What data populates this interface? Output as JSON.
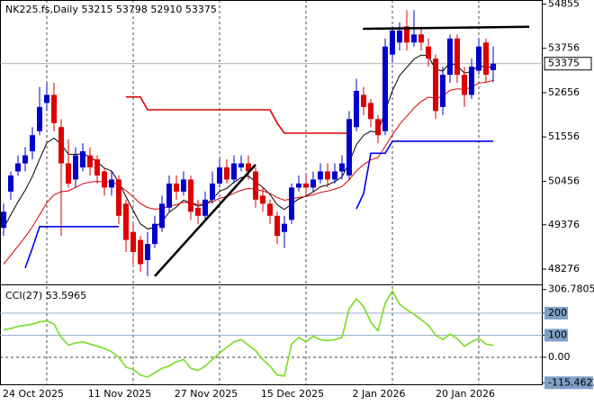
{
  "chart_data": [
    {
      "type": "candlestick",
      "title": "NK225.fs,Daily",
      "categories": [
        null,
        null,
        null,
        null,
        null,
        null,
        "24 Oct 2025",
        null,
        null,
        null,
        null,
        null,
        null,
        null,
        null,
        null,
        null,
        null,
        "11 Nov 2025",
        null,
        null,
        null,
        null,
        null,
        null,
        null,
        null,
        null,
        null,
        null,
        "27 Nov 2025",
        null,
        null,
        null,
        null,
        null,
        null,
        null,
        null,
        null,
        null,
        null,
        "15 Dec 2025",
        null,
        null,
        null,
        null,
        null,
        null,
        null,
        null,
        null,
        null,
        null,
        "2 Jan 2026",
        null,
        null,
        null,
        null,
        null,
        null,
        null,
        null,
        null,
        null,
        null,
        "20 Jan 2026",
        null,
        null
      ],
      "open": [
        49300,
        50200,
        50700,
        50900,
        51200,
        51700,
        52400,
        52600,
        51800,
        50900,
        50500,
        50800,
        51100,
        51000,
        50700,
        50300,
        50500,
        49900,
        49200,
        49000,
        48500,
        48900,
        49300,
        49800,
        50400,
        50200,
        50500,
        49800,
        49600,
        50000,
        50400,
        50800,
        50500,
        50800,
        50900,
        50700,
        50100,
        49900,
        49600,
        49200,
        49500,
        50300,
        50400,
        50300,
        50500,
        50700,
        50500,
        50700,
        50600,
        51800,
        52600,
        52400,
        52000,
        51700,
        53600,
        53900,
        54300,
        53900,
        54100,
        53800,
        53500,
        52300,
        53100,
        54000,
        53100,
        52600,
        53200,
        53900,
        53215
      ],
      "high": [
        49900,
        50700,
        51100,
        51300,
        51800,
        52800,
        52900,
        52900,
        52000,
        51500,
        51300,
        51400,
        51300,
        51100,
        50800,
        50700,
        50600,
        50000,
        49400,
        49100,
        49200,
        49600,
        50100,
        50600,
        50600,
        50700,
        50600,
        50000,
        50200,
        50700,
        51000,
        51000,
        51100,
        51100,
        51100,
        50800,
        50300,
        50000,
        49700,
        49600,
        50400,
        50600,
        50600,
        50700,
        50900,
        50900,
        50900,
        51100,
        52200,
        53000,
        52800,
        52500,
        52100,
        54000,
        54300,
        54400,
        54700,
        54700,
        54300,
        54000,
        53600,
        53300,
        54100,
        54100,
        53300,
        53500,
        54000,
        54000,
        53798
      ],
      "low": [
        49100,
        50000,
        50600,
        50700,
        51000,
        51600,
        52200,
        51700,
        49100,
        50300,
        50300,
        50700,
        50600,
        50400,
        50100,
        50100,
        49400,
        48700,
        48400,
        48200,
        48100,
        48800,
        49200,
        49700,
        50000,
        50100,
        49500,
        49400,
        49500,
        49900,
        50300,
        50400,
        50400,
        50700,
        50500,
        49800,
        49700,
        49400,
        48900,
        48800,
        49400,
        50200,
        50100,
        50200,
        50400,
        50300,
        50400,
        50500,
        50500,
        51700,
        52100,
        51800,
        51400,
        51600,
        53400,
        53700,
        53700,
        53800,
        53700,
        53300,
        52000,
        52100,
        52900,
        52900,
        52300,
        52500,
        53100,
        52900,
        52910
      ],
      "close": [
        49700,
        50600,
        50900,
        51100,
        51600,
        52300,
        52600,
        51900,
        50900,
        50400,
        51100,
        51200,
        50800,
        50600,
        50300,
        50500,
        49600,
        49000,
        48700,
        48400,
        48900,
        49400,
        49900,
        50400,
        50200,
        50500,
        49700,
        49600,
        50000,
        50400,
        50800,
        50500,
        50900,
        50900,
        50700,
        50000,
        49900,
        49600,
        49100,
        49400,
        50300,
        50400,
        50300,
        50500,
        50700,
        50500,
        50700,
        50900,
        52000,
        52700,
        52300,
        52000,
        51600,
        53800,
        54200,
        54200,
        53900,
        54100,
        53900,
        53500,
        52200,
        53100,
        54000,
        53100,
        52600,
        53300,
        53800,
        53100,
        53375
      ],
      "up_color": "#0000cc",
      "down_color": "#dd0000",
      "lines": [
        {
          "color": "#000000",
          "values": [
            49300,
            49625,
            49944,
            50233,
            50575,
            51006,
            51405,
            51529,
            51372,
            51129,
            51122,
            51142,
            51056,
            50942,
            50782,
            50711,
            50433,
            50075,
            49731,
            49398,
            49274,
            49305,
            49454,
            49691,
            49818,
            49989,
            49917,
            49838,
            49878,
            50009,
            50207,
            50280,
            50435,
            50551,
            50588,
            50441,
            50306,
            50130,
            49873,
            49754,
            49891,
            50018,
            50089,
            50192,
            50319,
            50364,
            50448,
            50561,
            50921,
            51366,
            51599,
            51699,
            51674,
            52206,
            52704,
            53078,
            53284,
            53488,
            53591,
            53568,
            53226,
            53195,
            53396,
            53322,
            53142,
            53181,
            53336,
            53277,
            53302
          ]
        },
        {
          "color": "#dd0000",
          "values": [
            48400,
            48620,
            48848,
            49073,
            49326,
            49623,
            49921,
            50119,
            50197,
            50217,
            50305,
            50395,
            50436,
            50452,
            50437,
            50443,
            50359,
            50223,
            50071,
            49904,
            49804,
            49763,
            49777,
            49839,
            49875,
            49938,
            49914,
            49883,
            49895,
            49945,
            50031,
            50078,
            50160,
            50234,
            50281,
            50253,
            50218,
            50156,
            50050,
            49985,
            50017,
            50055,
            50080,
            50122,
            50180,
            50212,
            50261,
            50325,
            50493,
            50714,
            50873,
            50986,
            51047,
            51322,
            51610,
            51869,
            52072,
            52275,
            52438,
            52544,
            52510,
            52569,
            52712,
            52751,
            52736,
            52792,
            52893,
            52914,
            52960
          ]
        },
        {
          "color": "#dd0000",
          "values": [
            null,
            null,
            null,
            null,
            null,
            null,
            null,
            null,
            null,
            null,
            null,
            null,
            null,
            null,
            null,
            null,
            null,
            52550,
            52550,
            52550,
            52230,
            52230,
            52230,
            52230,
            52230,
            52230,
            52230,
            52230,
            52230,
            52230,
            52230,
            52230,
            52230,
            52230,
            52230,
            52230,
            52230,
            52230,
            51900,
            51650,
            51650,
            51650,
            51650,
            51650,
            51650,
            51650,
            51650,
            51650,
            51650,
            null,
            null,
            null,
            null,
            null,
            null,
            null,
            null,
            null,
            null,
            null,
            null,
            null,
            null,
            null,
            null,
            null,
            null,
            null,
            null
          ]
        },
        {
          "color": "#0000ee",
          "values": [
            null,
            null,
            null,
            48300,
            48800,
            49330,
            49330,
            49330,
            49330,
            49330,
            49330,
            49330,
            49330,
            49330,
            49330,
            49330,
            49330,
            null,
            null,
            null,
            null,
            null,
            null,
            null,
            null,
            null,
            null,
            null,
            null,
            null,
            null,
            null,
            null,
            null,
            null,
            null,
            null,
            null,
            null,
            null,
            null,
            null,
            null,
            null,
            null,
            null,
            null,
            null,
            null,
            49770,
            50150,
            51150,
            51150,
            51150,
            51450,
            51450,
            51450,
            51450,
            51450,
            51450,
            51450,
            51450,
            51450,
            51450,
            51450,
            51450,
            51450,
            51450,
            51450
          ]
        }
      ],
      "trendlines": [
        {
          "color": "#000000",
          "x": [
            21,
            35
          ],
          "y": [
            48100,
            50870
          ]
        },
        {
          "color": "#000000",
          "x": [
            49.9,
            73
          ],
          "y": [
            54240,
            54290
          ]
        }
      ],
      "ylim": [
        47919,
        54955
      ],
      "yticks": [
        48276,
        49376,
        50456,
        51556,
        52656,
        53756,
        54855
      ],
      "grid": true
    },
    {
      "type": "line",
      "title": "CCI(27)",
      "color": "#77dd22",
      "values": [
        125,
        130,
        140,
        145,
        150,
        160,
        165,
        150,
        90,
        55,
        65,
        70,
        60,
        50,
        40,
        25,
        0,
        -45,
        -55,
        -80,
        -90,
        -70,
        -50,
        -40,
        -20,
        -10,
        -50,
        -60,
        -40,
        -10,
        20,
        45,
        70,
        80,
        55,
        30,
        -10,
        -40,
        -80,
        -85,
        60,
        90,
        70,
        95,
        80,
        75,
        80,
        90,
        220,
        265,
        230,
        160,
        120,
        245,
        300,
        240,
        215,
        195,
        170,
        145,
        100,
        80,
        105,
        85,
        50,
        70,
        85,
        60,
        53.5965
      ],
      "ylim": [
        -126.5,
        322
      ],
      "yticks": [
        -115.4622,
        {
          "value": 0,
          "label": "0.00"
        },
        100,
        200,
        306.7805
      ]
    }
  ]
}
